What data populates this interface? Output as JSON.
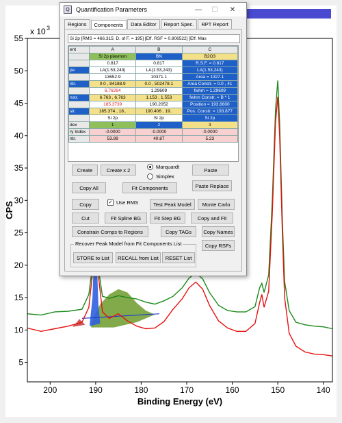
{
  "window": {
    "title": "Quantification Parameters",
    "minimize": "—",
    "maximize": "☐",
    "close": "✕",
    "app_icon": "Q"
  },
  "tabs": [
    "Regions",
    "Components",
    "Data Editor",
    "Report Spec.",
    "RPT Report"
  ],
  "active_tab": "Components",
  "info_line": "Si 2p [RMS = 466.315; D. of F. = 195] [Eff. RSF = 0.806522] [Eff. Mas",
  "grid": {
    "col_headers": [
      "ent",
      "A",
      "B",
      "C"
    ],
    "rows": [
      {
        "label": "",
        "a": "Si 2p plasmon",
        "b": "BN",
        "c": "B2O3"
      },
      {
        "label": "",
        "a": "0.817",
        "b": "0.817",
        "c": "R.S.F. = 0.817"
      },
      {
        "label": "pe",
        "a": "LA(1.53,243)",
        "b": "LA(1.53,243)",
        "c": "LA(1.53,243)"
      },
      {
        "label": "",
        "a": "13652.9",
        "b": "10371.1",
        "c": "Area = 1327.1"
      },
      {
        "label": "ntr.",
        "a": "0.0 , 84188.9",
        "b": "0.0 , 502478.1",
        "c": "Area Constr. = 0.0 , 41"
      },
      {
        "label": "",
        "a": "6.76264",
        "b": "1.29609",
        "c": "fwhm = 1.29609"
      },
      {
        "label": "nstr.",
        "a": "6.763 , 6.763",
        "b": "1.153 , 1.553",
        "c": "fwhm Constr. = B * 1"
      },
      {
        "label": "",
        "a": "185.3739",
        "b": "190.2052",
        "c": "Position = 193.6600"
      },
      {
        "label": "str.",
        "a": "185.374 , 18..",
        "b": "190.406 , 19..",
        "c": "Pos. Constr. = 193.877"
      },
      {
        "label": "",
        "a": "Si 2p",
        "b": "Si 2p",
        "c": "Si 2p"
      },
      {
        "label": "dex",
        "a": "1",
        "b": "2",
        "c": "3"
      },
      {
        "label": "ry Index",
        "a": "-0.0000",
        "b": "-0.0000",
        "c": "-0.0000"
      },
      {
        "label": "ntr.",
        "a": "53.89",
        "b": "40.87",
        "c": "5.23"
      }
    ]
  },
  "buttons": {
    "create": "Create",
    "create2": "Create x 2",
    "paste": "Paste",
    "copy_all": "Copy All",
    "fit_components": "Fit Components",
    "paste_replace": "Paste Replace",
    "copy": "Copy",
    "test_peak": "Test Peak Model",
    "monte_carlo": "Monte Carlo",
    "cut": "Cut",
    "fit_spline": "Fit Spline BG",
    "fit_step": "Fit Step BG",
    "copy_fit": "Copy and Fit",
    "constrain": "Constrain Comps to Regions",
    "copy_tags": "Copy TAGs",
    "copy_names": "Copy Names",
    "copy_rsfs": "Copy RSFs",
    "store": "STORE to List",
    "recall": "RECALL from List",
    "reset": "RESET List"
  },
  "radios": {
    "marquardt": "Marquardt",
    "simplex": "Simplex",
    "selected": "Marquardt"
  },
  "use_rms": {
    "label": "Use RMS",
    "checked": "✓"
  },
  "group_label": "Recover Peak Model from Fit Components List",
  "chart_data": {
    "type": "line",
    "xlabel": "Binding Energy (eV)",
    "ylabel": "CPS",
    "multiplier": "x 10",
    "multiplier_exp": "3",
    "xlim": [
      205,
      138
    ],
    "ylim": [
      2,
      55
    ],
    "x_ticks": [
      200,
      190,
      180,
      170,
      160,
      150,
      140
    ],
    "y_ticks": [
      5,
      10,
      15,
      20,
      25,
      30,
      35,
      40,
      45,
      50,
      55
    ],
    "colors": {
      "green": "#1a8a1a",
      "red": "#e81010",
      "blue": "#1f3fcf",
      "fillgreen": "#6c9a2a",
      "fillblue": "#2f5fdf",
      "fillred": "#c03030"
    },
    "series": [
      {
        "color_key": "green",
        "x": [
          205,
          202,
          199,
          196,
          193,
          191.5,
          190.5,
          190,
          189.5,
          188.5,
          187,
          185,
          183,
          181,
          179,
          177,
          175,
          173,
          171,
          169.5,
          168,
          166.5,
          165,
          163,
          161,
          159,
          157,
          155,
          154,
          153.5,
          153,
          152,
          151.2,
          150.5,
          150,
          149.6,
          149,
          148.5,
          147.5,
          146,
          144,
          142,
          140,
          138
        ],
        "y": [
          12.5,
          12.3,
          12.8,
          12.9,
          13.2,
          15.5,
          21,
          29,
          20,
          15.2,
          14.9,
          15.3,
          15.0,
          14.8,
          14.3,
          14.0,
          14.5,
          15.2,
          16.5,
          18.0,
          18.8,
          17.9,
          15.8,
          13.8,
          13.0,
          12.8,
          12.8,
          13.6,
          16.5,
          17.2,
          15.8,
          18.5,
          30,
          44,
          48.5,
          42,
          27,
          17.5,
          13,
          11.2,
          10.8,
          10.6,
          10.5,
          10.2
        ]
      },
      {
        "color_key": "red",
        "x": [
          205,
          202,
          199,
          196,
          193,
          191.5,
          190.5,
          190,
          189.5,
          188.5,
          187,
          185,
          183,
          181,
          179,
          177,
          175,
          173,
          171,
          169.5,
          168,
          166.5,
          165,
          163,
          161,
          159,
          157,
          155,
          154,
          153.5,
          153,
          152,
          151.2,
          150.5,
          150,
          149.6,
          149,
          148.5,
          147.5,
          146,
          144,
          142,
          140,
          138
        ],
        "y": [
          10.3,
          9.8,
          10.2,
          10.6,
          11.2,
          13.5,
          20,
          28,
          19,
          12.8,
          11.8,
          12.5,
          11.4,
          10.6,
          10.2,
          10.3,
          11.3,
          13.2,
          14.8,
          16.5,
          17.4,
          16.3,
          13.8,
          11.4,
          10.3,
          9.8,
          9.8,
          11.0,
          14.2,
          15.5,
          13.5,
          16.0,
          28,
          42,
          46,
          40,
          25,
          15,
          9.5,
          7.5,
          6.6,
          6.3,
          6.2,
          6.0
        ]
      }
    ]
  }
}
